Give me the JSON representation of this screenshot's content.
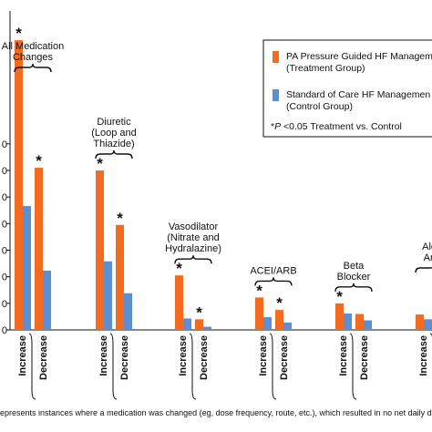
{
  "chart_data": {
    "type": "bar",
    "categories": [
      {
        "label_lines": [
          "All Medication",
          "Changes"
        ]
      },
      {
        "label_lines": [
          "Diuretic",
          "(Loop and",
          "Thiazide)"
        ]
      },
      {
        "label_lines": [
          "Vasodilator",
          "(Nitrate and",
          "Hydralazine)"
        ]
      },
      {
        "label_lines": [
          "ACEI/ARB"
        ]
      },
      {
        "label_lines": [
          "Beta",
          "Blocker"
        ]
      },
      {
        "label_lines": [
          "Aldo-",
          "Anta"
        ]
      }
    ],
    "sub_categories": [
      "Increase",
      "Decrease"
    ],
    "series": [
      {
        "name_lines": [
          "PA Pressure Guided HF Managem",
          "(Treatment Group)"
        ],
        "color": "#f26b21",
        "increase": [
          1090,
          600,
          205,
          122,
          100,
          58
        ],
        "decrease": [
          610,
          395,
          40,
          75,
          60,
          0
        ]
      },
      {
        "name_lines": [
          "Standard of Care HF Managemen",
          "(Control Group)"
        ],
        "color": "#5b8fd2",
        "increase": [
          466,
          258,
          43,
          48,
          62,
          40
        ],
        "decrease": [
          223,
          138,
          12,
          28,
          36,
          0
        ]
      }
    ],
    "significant": {
      "increase": [
        true,
        true,
        true,
        true,
        true,
        false
      ],
      "decrease": [
        true,
        true,
        true,
        true,
        false,
        false
      ]
    },
    "y_tick_labels": [
      "0",
      "0",
      "0",
      "0",
      "0",
      "0",
      "0",
      "0"
    ],
    "ylim": [
      0,
      1200
    ],
    "y_tick_step": 100,
    "grid": false,
    "legend_position": "top-right",
    "legend_note": {
      "prefix": "*",
      "italic": "P",
      "suffix": " <0.05 Treatment vs. Control"
    },
    "star_symbol": "*",
    "footnote": "epresents instances where a medication was changed (eg, dose frequency, route, etc.), which resulted in no net daily dose equivale"
  }
}
